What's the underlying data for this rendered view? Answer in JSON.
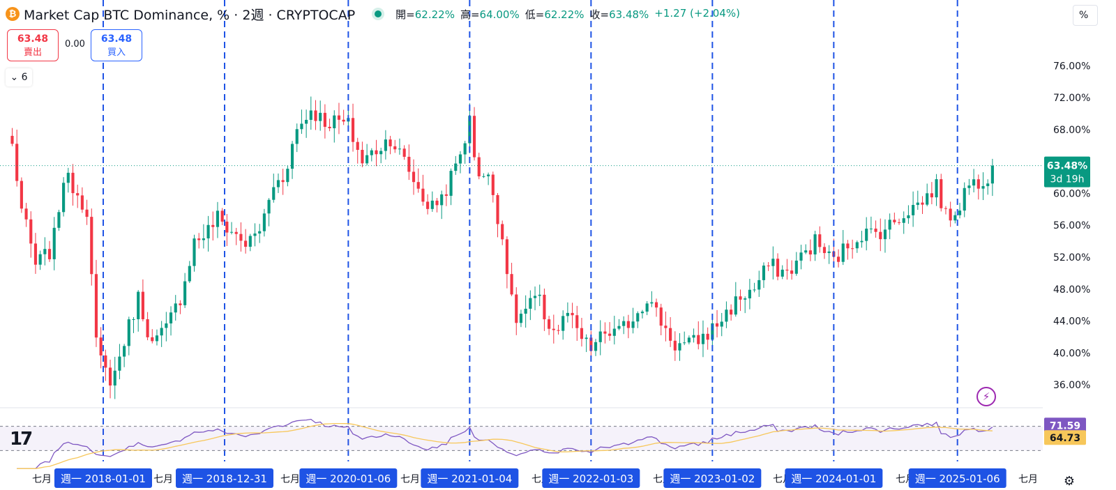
{
  "header": {
    "coin_glyph": "₿",
    "title": "Market Cap BTC Dominance, % · 2週 · CRYPTOCAP",
    "open_label": "開=",
    "open": "62.22%",
    "high_label": "高=",
    "high": "64.00%",
    "low_label": "低=",
    "low": "62.22%",
    "close_label": "收=",
    "close": "63.48%",
    "change": "+1.27 (+2.04%)"
  },
  "trade": {
    "sell_price": "63.48",
    "sell_label": "賣出",
    "spread": "0.00",
    "buy_price": "63.48",
    "buy_label": "買入"
  },
  "collapse_count": "6",
  "scale_button": "%",
  "icons": {
    "coin": "bitcoin-icon",
    "collapse": "chevron-down-icon",
    "lightning": "lightning-icon",
    "settings": "gear-icon",
    "logo": "tradingview-logo-icon"
  },
  "logo_text": "17",
  "colors": {
    "up": "#089981",
    "down": "#f23645",
    "rsi": "#7e57c2",
    "rsi_ma": "#f7c75a",
    "separator": "#1e53e5"
  },
  "chart_data": [
    {
      "type": "candlestick",
      "interval": "2週",
      "symbol": "CRYPTOCAP",
      "title": "Market Cap BTC Dominance",
      "ylim": [
        34,
        79
      ],
      "y_ticks": [
        "76.00%",
        "72.00%",
        "68.00%",
        "64.00%",
        "60.00%",
        "56.00%",
        "52.00%",
        "48.00%",
        "44.00%",
        "40.00%",
        "36.00%"
      ],
      "last_value_label": "63.48%",
      "countdown_label": "3d 19h",
      "last_value": 63.48,
      "x_labels": [
        "七月",
        "週一 2018-01-01",
        "七月",
        "週一 2018-12-31",
        "七月",
        "週一 2020-01-06",
        "七月",
        "週一 2021-01-04",
        "七月",
        "週一 2022-01-03",
        "七月",
        "週一 2023-01-02",
        "七月",
        "週一 2024-01-01",
        "七月",
        "週一 2025-01-06",
        "七月"
      ],
      "separators": [
        "2018-01-01",
        "2018-12-31",
        "2020-01-06",
        "2021-01-04",
        "2022-01-03",
        "2023-01-02",
        "2024-01-01",
        "2025-01-06"
      ],
      "anchors": [
        [
          "2017-04-03",
          66
        ],
        [
          "2017-05-01",
          58
        ],
        [
          "2017-06-12",
          51
        ],
        [
          "2017-08-01",
          53
        ],
        [
          "2017-09-04",
          62
        ],
        [
          "2017-10-02",
          61
        ],
        [
          "2017-11-13",
          58
        ],
        [
          "2017-12-11",
          41
        ],
        [
          "2018-01-01",
          38
        ],
        [
          "2018-01-29",
          36.5
        ],
        [
          "2018-03-01",
          41
        ],
        [
          "2018-04-16",
          47
        ],
        [
          "2018-05-28",
          41
        ],
        [
          "2018-07-09",
          43
        ],
        [
          "2018-08-20",
          47
        ],
        [
          "2018-10-01",
          54
        ],
        [
          "2018-11-05",
          55
        ],
        [
          "2018-12-10",
          57
        ],
        [
          "2018-12-31",
          56
        ],
        [
          "2019-01-28",
          55
        ],
        [
          "2019-03-11",
          53.5
        ],
        [
          "2019-04-22",
          56
        ],
        [
          "2019-05-27",
          61
        ],
        [
          "2019-06-24",
          62
        ],
        [
          "2019-08-05",
          68
        ],
        [
          "2019-09-16",
          70.5
        ],
        [
          "2019-10-28",
          69
        ],
        [
          "2019-12-09",
          69
        ],
        [
          "2020-01-06",
          68.5
        ],
        [
          "2020-02-17",
          64
        ],
        [
          "2020-03-16",
          65
        ],
        [
          "2020-05-11",
          67
        ],
        [
          "2020-06-22",
          64
        ],
        [
          "2020-08-10",
          60
        ],
        [
          "2020-09-07",
          58
        ],
        [
          "2020-10-19",
          60
        ],
        [
          "2020-11-30",
          64
        ],
        [
          "2021-01-04",
          69
        ],
        [
          "2021-01-25",
          63
        ],
        [
          "2021-03-08",
          61.5
        ],
        [
          "2021-04-19",
          53
        ],
        [
          "2021-05-17",
          44
        ],
        [
          "2021-06-14",
          45
        ],
        [
          "2021-07-26",
          47
        ],
        [
          "2021-08-23",
          44
        ],
        [
          "2021-09-20",
          42.5
        ],
        [
          "2021-10-25",
          45
        ],
        [
          "2021-11-22",
          42.5
        ],
        [
          "2021-12-20",
          41
        ],
        [
          "2022-01-03",
          40.5
        ],
        [
          "2022-02-14",
          42.5
        ],
        [
          "2022-03-28",
          42.5
        ],
        [
          "2022-05-09",
          44.5
        ],
        [
          "2022-06-20",
          47
        ],
        [
          "2022-08-01",
          44
        ],
        [
          "2022-09-12",
          41
        ],
        [
          "2022-10-24",
          41
        ],
        [
          "2022-12-05",
          42
        ],
        [
          "2023-01-02",
          43
        ],
        [
          "2023-02-13",
          45
        ],
        [
          "2023-03-27",
          47
        ],
        [
          "2023-05-08",
          48
        ],
        [
          "2023-06-19",
          51
        ],
        [
          "2023-08-14",
          50
        ],
        [
          "2023-09-25",
          52
        ],
        [
          "2023-11-06",
          54
        ],
        [
          "2023-12-18",
          52
        ],
        [
          "2024-01-01",
          51.5
        ],
        [
          "2024-02-12",
          53.5
        ],
        [
          "2024-03-25",
          55
        ],
        [
          "2024-05-06",
          55
        ],
        [
          "2024-06-17",
          56
        ],
        [
          "2024-08-12",
          58
        ],
        [
          "2024-09-23",
          59
        ],
        [
          "2024-11-04",
          61
        ],
        [
          "2024-12-02",
          57
        ],
        [
          "2025-01-06",
          58
        ],
        [
          "2025-02-03",
          61
        ],
        [
          "2025-03-31",
          62
        ],
        [
          "2025-05-01",
          63.5
        ]
      ]
    },
    {
      "type": "line",
      "name": "RSI",
      "ylim": [
        20,
        95
      ],
      "rsi_label": "71.59",
      "ma_label": "64.73",
      "rsi_value": 71.59,
      "ma_value": 64.73,
      "band_upper": 70,
      "band_lower": 30
    }
  ]
}
